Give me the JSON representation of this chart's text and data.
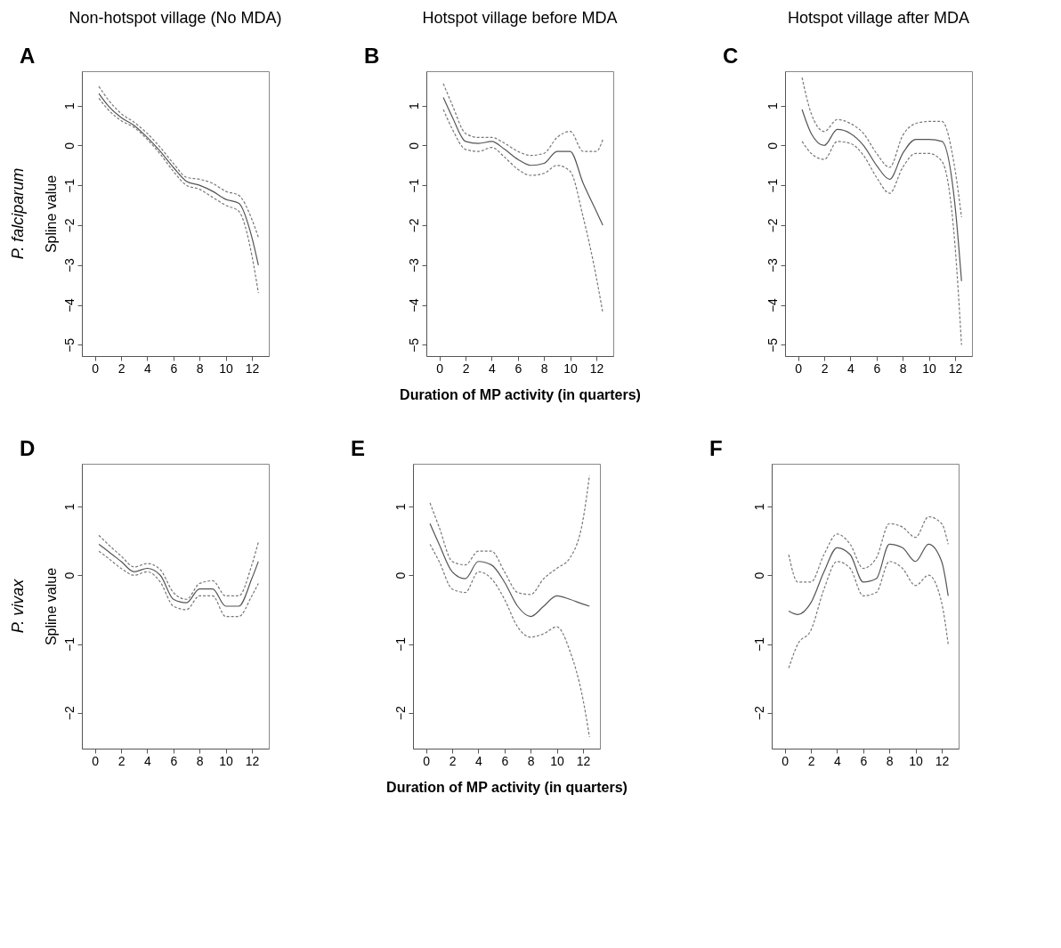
{
  "chart_data": [
    {
      "type": "line",
      "title": "Non-hotspot village (No MDA)",
      "ylabel": "Spline value",
      "annotations": [
        "A",
        "P. falciparum"
      ],
      "x": [
        0.3,
        1,
        2,
        3,
        4,
        5,
        6,
        7,
        8,
        9,
        10,
        11,
        12,
        12.5
      ],
      "xlim": [
        -1,
        13.3
      ],
      "xticks": [
        0,
        2,
        4,
        6,
        8,
        10,
        12
      ],
      "ylim": [
        -5.28,
        1.86
      ],
      "yticks": [
        -5,
        -4,
        -3,
        -2,
        -1,
        0,
        1
      ],
      "series": [
        {
          "color": "#555555",
          "line_style": "solid",
          "values": [
            1.3,
            1.0,
            0.7,
            0.5,
            0.2,
            -0.15,
            -0.55,
            -0.9,
            -1.0,
            -1.15,
            -1.35,
            -1.45,
            -2.3,
            -3.0
          ]
        },
        {
          "color": "#777777",
          "line_style": "dashed",
          "values": [
            1.48,
            1.15,
            0.8,
            0.58,
            0.3,
            -0.05,
            -0.45,
            -0.8,
            -0.85,
            -0.95,
            -1.15,
            -1.25,
            -1.85,
            -2.3
          ]
        },
        {
          "color": "#777777",
          "line_style": "dashed",
          "values": [
            1.18,
            0.9,
            0.62,
            0.45,
            0.15,
            -0.22,
            -0.65,
            -1.0,
            -1.1,
            -1.3,
            -1.5,
            -1.65,
            -2.75,
            -3.7
          ]
        }
      ]
    },
    {
      "type": "line",
      "title": "Hotspot village before MDA",
      "xlabel": "Duration of MP activity (in quarters)",
      "annotations": [
        "B"
      ],
      "x": [
        0.3,
        1,
        2,
        3,
        4,
        5,
        6,
        7,
        8,
        9,
        10,
        11,
        12,
        12.5
      ],
      "xlim": [
        -1,
        13.3
      ],
      "xticks": [
        0,
        2,
        4,
        6,
        8,
        10,
        12
      ],
      "ylim": [
        -5.28,
        1.86
      ],
      "yticks": [
        -5,
        -4,
        -3,
        -2,
        -1,
        0,
        1
      ],
      "series": [
        {
          "color": "#555555",
          "line_style": "solid",
          "values": [
            1.2,
            0.7,
            0.1,
            0.05,
            0.1,
            -0.1,
            -0.35,
            -0.5,
            -0.45,
            -0.15,
            -0.15,
            -0.95,
            -1.65,
            -2.0
          ]
        },
        {
          "color": "#777777",
          "line_style": "dashed",
          "values": [
            1.55,
            1.0,
            0.3,
            0.2,
            0.2,
            0.05,
            -0.15,
            -0.25,
            -0.2,
            0.2,
            0.35,
            -0.15,
            -0.15,
            0.15
          ]
        },
        {
          "color": "#777777",
          "line_style": "dashed",
          "values": [
            0.9,
            0.4,
            -0.1,
            -0.15,
            -0.05,
            -0.3,
            -0.6,
            -0.75,
            -0.7,
            -0.5,
            -0.65,
            -1.8,
            -3.3,
            -4.2
          ]
        }
      ]
    },
    {
      "type": "line",
      "title": "Hotspot village after MDA",
      "annotations": [
        "C"
      ],
      "x": [
        0.3,
        1,
        2,
        3,
        4,
        5,
        6,
        7,
        8,
        9,
        10,
        11,
        12,
        12.5
      ],
      "xlim": [
        -1,
        13.3
      ],
      "xticks": [
        0,
        2,
        4,
        6,
        8,
        10,
        12
      ],
      "ylim": [
        -5.28,
        1.86
      ],
      "yticks": [
        -5,
        -4,
        -3,
        -2,
        -1,
        0,
        1
      ],
      "series": [
        {
          "color": "#555555",
          "line_style": "solid",
          "values": [
            0.9,
            0.3,
            0.0,
            0.4,
            0.3,
            0.0,
            -0.5,
            -0.85,
            -0.2,
            0.15,
            0.15,
            0.1,
            -1.5,
            -3.4
          ]
        },
        {
          "color": "#777777",
          "line_style": "dashed",
          "values": [
            1.7,
            0.8,
            0.35,
            0.65,
            0.55,
            0.3,
            -0.2,
            -0.55,
            0.25,
            0.55,
            0.6,
            0.6,
            -0.6,
            -1.8
          ]
        },
        {
          "color": "#777777",
          "line_style": "dashed",
          "values": [
            0.1,
            -0.2,
            -0.35,
            0.1,
            0.05,
            -0.25,
            -0.8,
            -1.2,
            -0.55,
            -0.2,
            -0.2,
            -0.4,
            -2.5,
            -5.0
          ]
        }
      ]
    },
    {
      "type": "line",
      "ylabel": "Spline value",
      "annotations": [
        "D",
        "P. vivax"
      ],
      "x": [
        0.3,
        1,
        2,
        3,
        4,
        5,
        6,
        7,
        8,
        9,
        10,
        11,
        12,
        12.5
      ],
      "xlim": [
        -1,
        13.3
      ],
      "xticks": [
        0,
        2,
        4,
        6,
        8,
        10,
        12
      ],
      "ylim": [
        -2.52,
        1.62
      ],
      "yticks": [
        -2,
        -1,
        0,
        1
      ],
      "series": [
        {
          "color": "#555555",
          "line_style": "solid",
          "values": [
            0.45,
            0.35,
            0.2,
            0.05,
            0.1,
            0.0,
            -0.35,
            -0.4,
            -0.2,
            -0.2,
            -0.45,
            -0.45,
            -0.05,
            0.2
          ]
        },
        {
          "color": "#777777",
          "line_style": "dashed",
          "values": [
            0.58,
            0.45,
            0.28,
            0.12,
            0.17,
            0.08,
            -0.25,
            -0.35,
            -0.12,
            -0.08,
            -0.3,
            -0.3,
            0.15,
            0.48
          ]
        },
        {
          "color": "#777777",
          "line_style": "dashed",
          "values": [
            0.35,
            0.25,
            0.1,
            0.0,
            0.05,
            -0.1,
            -0.45,
            -0.5,
            -0.3,
            -0.3,
            -0.6,
            -0.6,
            -0.3,
            -0.12
          ]
        }
      ]
    },
    {
      "type": "line",
      "xlabel": "Duration of MP activity (in quarters)",
      "annotations": [
        "E"
      ],
      "x": [
        0.3,
        1,
        2,
        3,
        4,
        5,
        6,
        7,
        8,
        9,
        10,
        11,
        12,
        12.5
      ],
      "xlim": [
        -1,
        13.3
      ],
      "xticks": [
        0,
        2,
        4,
        6,
        8,
        10,
        12
      ],
      "ylim": [
        -2.52,
        1.62
      ],
      "yticks": [
        -2,
        -1,
        0,
        1
      ],
      "series": [
        {
          "color": "#555555",
          "line_style": "solid",
          "values": [
            0.75,
            0.45,
            0.05,
            -0.05,
            0.2,
            0.15,
            -0.1,
            -0.45,
            -0.6,
            -0.45,
            -0.3,
            -0.35,
            -0.42,
            -0.45
          ]
        },
        {
          "color": "#777777",
          "line_style": "dashed",
          "values": [
            1.05,
            0.7,
            0.2,
            0.15,
            0.35,
            0.35,
            0.05,
            -0.25,
            -0.28,
            -0.05,
            0.1,
            0.25,
            0.8,
            1.45
          ]
        },
        {
          "color": "#777777",
          "line_style": "dashed",
          "values": [
            0.45,
            0.2,
            -0.2,
            -0.25,
            0.05,
            -0.05,
            -0.35,
            -0.75,
            -0.9,
            -0.85,
            -0.75,
            -1.1,
            -1.8,
            -2.35
          ]
        }
      ]
    },
    {
      "type": "line",
      "annotations": [
        "F"
      ],
      "x": [
        0.3,
        1,
        2,
        3,
        4,
        5,
        6,
        7,
        8,
        9,
        10,
        11,
        12,
        12.5
      ],
      "xlim": [
        -1,
        13.3
      ],
      "xticks": [
        0,
        2,
        4,
        6,
        8,
        10,
        12
      ],
      "ylim": [
        -2.52,
        1.62
      ],
      "yticks": [
        -2,
        -1,
        0,
        1
      ],
      "series": [
        {
          "color": "#555555",
          "line_style": "solid",
          "values": [
            -0.52,
            -0.57,
            -0.4,
            0.05,
            0.4,
            0.3,
            -0.1,
            -0.05,
            0.45,
            0.4,
            0.2,
            0.45,
            0.2,
            -0.3
          ]
        },
        {
          "color": "#777777",
          "line_style": "dashed",
          "values": [
            0.3,
            -0.1,
            -0.1,
            0.3,
            0.6,
            0.45,
            0.1,
            0.25,
            0.75,
            0.7,
            0.55,
            0.85,
            0.75,
            0.45
          ]
        },
        {
          "color": "#777777",
          "line_style": "dashed",
          "values": [
            -1.35,
            -1.0,
            -0.8,
            -0.2,
            0.2,
            0.1,
            -0.3,
            -0.25,
            0.2,
            0.1,
            -0.15,
            0.0,
            -0.4,
            -1.0
          ]
        }
      ]
    }
  ]
}
